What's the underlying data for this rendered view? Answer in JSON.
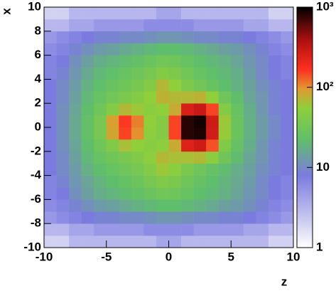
{
  "chart_data": {
    "type": "heatmap",
    "x_label": "z",
    "y_label": "x",
    "xbins": [
      -10,
      -9,
      -8,
      -7,
      -6,
      -5,
      -4,
      -3,
      -2,
      -1,
      0,
      1,
      2,
      3,
      4,
      5,
      6,
      7,
      8,
      9,
      10
    ],
    "ybins": [
      -10,
      -9,
      -8,
      -7,
      -6,
      -5,
      -4,
      -3,
      -2,
      -1,
      0,
      1,
      2,
      3,
      4,
      5,
      6,
      7,
      8,
      9,
      10
    ],
    "values": [
      [
        2,
        2,
        3,
        3,
        3,
        3,
        3,
        3,
        3,
        4,
        4,
        3,
        3,
        3,
        3,
        3,
        3,
        3,
        2,
        2
      ],
      [
        3,
        3,
        4,
        4,
        5,
        5,
        5,
        5,
        6,
        6,
        6,
        6,
        5,
        5,
        5,
        5,
        4,
        4,
        3,
        3
      ],
      [
        5,
        6,
        7,
        8,
        9,
        9,
        10,
        10,
        11,
        12,
        12,
        11,
        10,
        10,
        9,
        9,
        8,
        7,
        6,
        5
      ],
      [
        6,
        7,
        9,
        11,
        13,
        14,
        16,
        18,
        20,
        22,
        22,
        20,
        18,
        16,
        14,
        13,
        11,
        9,
        7,
        6
      ],
      [
        7,
        8,
        11,
        14,
        17,
        19,
        21,
        24,
        28,
        32,
        30,
        26,
        22,
        20,
        18,
        15,
        12,
        10,
        8,
        7
      ],
      [
        7,
        9,
        12,
        15,
        19,
        22,
        25,
        29,
        35,
        42,
        38,
        30,
        25,
        22,
        19,
        16,
        13,
        10,
        8,
        7
      ],
      [
        8,
        10,
        13,
        18,
        22,
        26,
        30,
        35,
        44,
        60,
        50,
        38,
        30,
        25,
        21,
        17,
        14,
        11,
        9,
        8
      ],
      [
        8,
        10,
        14,
        20,
        26,
        31,
        36,
        42,
        52,
        70,
        65,
        65,
        70,
        50,
        30,
        21,
        15,
        12,
        9,
        8
      ],
      [
        8,
        11,
        15,
        22,
        30,
        42,
        65,
        55,
        48,
        52,
        80,
        240,
        280,
        140,
        42,
        25,
        17,
        12,
        9,
        8
      ],
      [
        8,
        11,
        16,
        24,
        35,
        85,
        150,
        100,
        52,
        45,
        150,
        800,
        850,
        270,
        58,
        28,
        18,
        13,
        10,
        8
      ],
      [
        8,
        11,
        16,
        24,
        35,
        90,
        160,
        110,
        55,
        45,
        150,
        800,
        900,
        280,
        60,
        28,
        18,
        13,
        10,
        8
      ],
      [
        8,
        11,
        15,
        22,
        30,
        45,
        70,
        60,
        50,
        55,
        80,
        250,
        300,
        150,
        45,
        26,
        17,
        12,
        9,
        8
      ],
      [
        8,
        10,
        14,
        20,
        26,
        32,
        38,
        45,
        55,
        75,
        70,
        70,
        75,
        55,
        30,
        22,
        15,
        12,
        9,
        8
      ],
      [
        8,
        10,
        13,
        18,
        23,
        27,
        31,
        36,
        45,
        70,
        55,
        40,
        32,
        27,
        22,
        18,
        14,
        11,
        9,
        8
      ],
      [
        7,
        9,
        12,
        16,
        20,
        23,
        26,
        30,
        36,
        45,
        40,
        32,
        26,
        23,
        20,
        17,
        13,
        10,
        8,
        7
      ],
      [
        7,
        8,
        11,
        14,
        17,
        19,
        21,
        24,
        28,
        32,
        30,
        26,
        22,
        20,
        18,
        15,
        12,
        10,
        8,
        7
      ],
      [
        6,
        7,
        9,
        11,
        13,
        14,
        16,
        18,
        20,
        22,
        22,
        20,
        18,
        16,
        14,
        13,
        11,
        9,
        7,
        6
      ],
      [
        5,
        6,
        7,
        8,
        9,
        9,
        10,
        10,
        11,
        12,
        12,
        11,
        10,
        10,
        9,
        9,
        8,
        7,
        6,
        5
      ],
      [
        3,
        3,
        4,
        4,
        5,
        5,
        5,
        5,
        6,
        6,
        6,
        6,
        5,
        5,
        5,
        5,
        4,
        4,
        3,
        3
      ],
      [
        2,
        2,
        3,
        3,
        3,
        3,
        3,
        3,
        3,
        4,
        4,
        3,
        3,
        3,
        3,
        3,
        3,
        3,
        2,
        2
      ]
    ],
    "xlim": [
      -10,
      10
    ],
    "ylim": [
      -10,
      10
    ],
    "xticks": [
      -10,
      -5,
      0,
      5,
      10
    ],
    "yticks": [
      -10,
      -8,
      -6,
      -4,
      -2,
      0,
      2,
      4,
      6,
      8,
      10
    ],
    "zlim": [
      1,
      1000
    ],
    "zlog": true,
    "zticks": [
      1,
      10,
      {
        "value": 100,
        "label": "10²"
      },
      {
        "value": 1000,
        "label": "10³"
      }
    ]
  }
}
